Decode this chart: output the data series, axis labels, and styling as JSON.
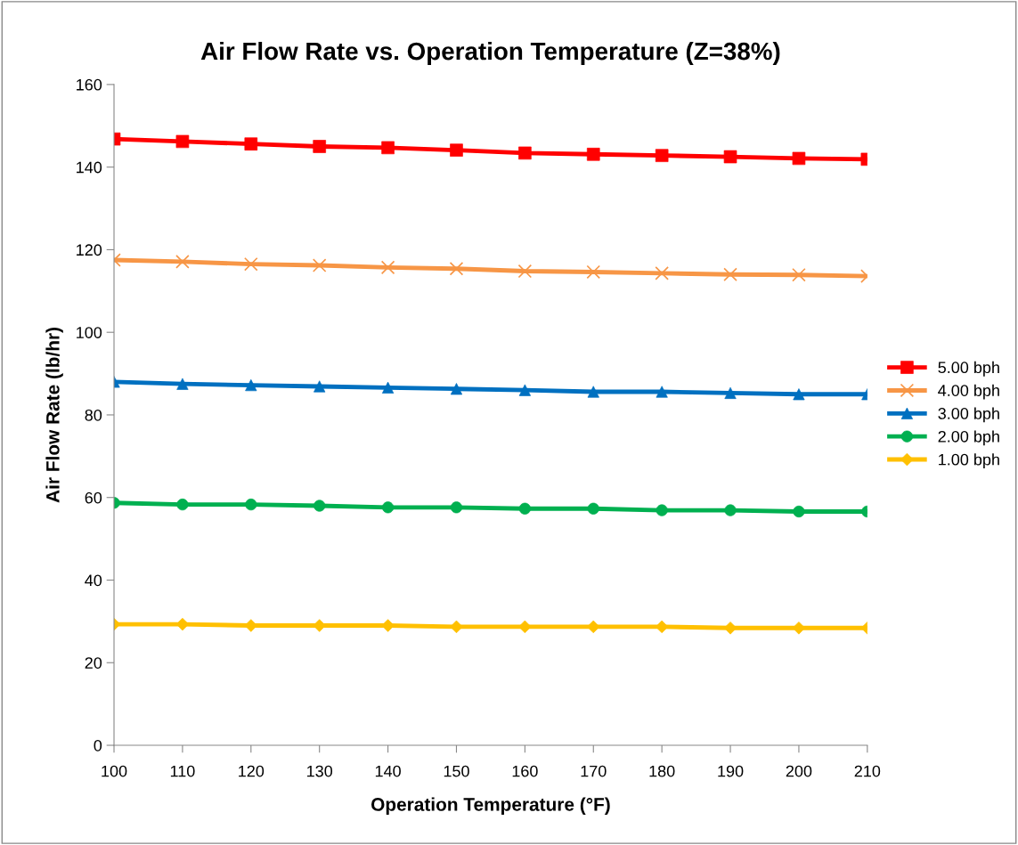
{
  "chart_data": {
    "type": "line",
    "title": "Air Flow Rate vs. Operation Temperature (Z=38%)",
    "xlabel": "Operation Temperature (°F)",
    "ylabel": "Air Flow Rate (lb/hr)",
    "x": [
      100,
      110,
      120,
      130,
      140,
      150,
      160,
      170,
      180,
      190,
      200,
      210
    ],
    "xlim": [
      100,
      210
    ],
    "xticks": [
      100,
      110,
      120,
      130,
      140,
      150,
      160,
      170,
      180,
      190,
      200,
      210
    ],
    "ylim": [
      0,
      160
    ],
    "yticks": [
      0,
      20,
      40,
      60,
      80,
      100,
      120,
      140,
      160
    ],
    "grid": false,
    "legend": "right",
    "series": [
      {
        "name": "5.00 bph",
        "color": "#ff0000",
        "marker": "square",
        "values": [
          146.8,
          146.2,
          145.6,
          145.0,
          144.7,
          144.1,
          143.4,
          143.1,
          142.8,
          142.5,
          142.1,
          141.9
        ]
      },
      {
        "name": "4.00 bph",
        "color": "#f79646",
        "marker": "cross",
        "values": [
          117.5,
          117.1,
          116.5,
          116.2,
          115.7,
          115.4,
          114.8,
          114.6,
          114.3,
          114.0,
          113.9,
          113.6
        ]
      },
      {
        "name": "3.00 bph",
        "color": "#0070c0",
        "marker": "triangle",
        "values": [
          88.0,
          87.5,
          87.2,
          86.9,
          86.6,
          86.3,
          86.0,
          85.6,
          85.6,
          85.3,
          85.0,
          85.0
        ]
      },
      {
        "name": "2.00 bph",
        "color": "#00b050",
        "marker": "circle",
        "values": [
          58.7,
          58.3,
          58.3,
          58.0,
          57.6,
          57.6,
          57.3,
          57.3,
          56.9,
          56.9,
          56.6,
          56.6
        ]
      },
      {
        "name": "1.00 bph",
        "color": "#ffc000",
        "marker": "diamond",
        "values": [
          29.3,
          29.3,
          29.0,
          29.0,
          29.0,
          28.7,
          28.7,
          28.7,
          28.7,
          28.4,
          28.4,
          28.4
        ]
      }
    ]
  }
}
